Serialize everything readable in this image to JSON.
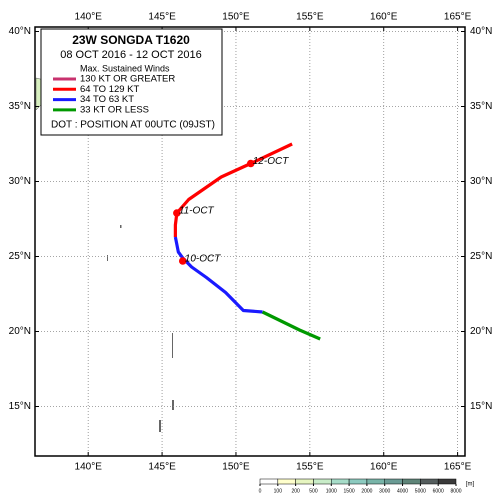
{
  "chart_data": {
    "type": "map",
    "title": "23W  SONGDA  T1620",
    "subtitle": "08 OCT 2016 - 12 OCT 2016",
    "legend_title": "Max. Sustained Winds",
    "note": "DOT : POSITION AT 00UTC (09JST)",
    "xlim": [
      136.4,
      165.5
    ],
    "ylim": [
      11.7,
      40.3
    ],
    "xticks": [
      {
        "value": 140,
        "label": "140°E"
      },
      {
        "value": 145,
        "label": "145°E"
      },
      {
        "value": 150,
        "label": "150°E"
      },
      {
        "value": 155,
        "label": "155°E"
      },
      {
        "value": 160,
        "label": "160°E"
      },
      {
        "value": 165,
        "label": "165°E"
      }
    ],
    "yticks": [
      {
        "value": 15,
        "label": "15°N"
      },
      {
        "value": 20,
        "label": "20°N"
      },
      {
        "value": 25,
        "label": "25°N"
      },
      {
        "value": 30,
        "label": "30°N"
      },
      {
        "value": 35,
        "label": "35°N"
      },
      {
        "value": 40,
        "label": "40°N"
      }
    ],
    "grid": true,
    "series": [
      {
        "name": "130 KT OR GREATER",
        "color": "#c8326e",
        "x": [],
        "values": []
      },
      {
        "name": "64 TO 129 KT",
        "color": "#ff0000",
        "x": [
          145.9,
          145.9,
          146.0,
          146.8,
          149.0,
          151.0,
          153.8
        ],
        "values": [
          26.3,
          27.1,
          27.9,
          28.8,
          30.3,
          31.2,
          32.5
        ]
      },
      {
        "name": "34 TO 63 KT",
        "color": "#1a1aff",
        "x": [
          151.8,
          150.5,
          149.3,
          148.0,
          147.0,
          146.4,
          146.1,
          145.9
        ],
        "values": [
          21.3,
          21.4,
          22.6,
          23.6,
          24.3,
          24.9,
          25.3,
          26.3
        ]
      },
      {
        "name": "33 KT OR LESS",
        "color": "#009900",
        "x": [
          155.7,
          154.3,
          151.8
        ],
        "values": [
          19.5,
          20.1,
          21.3
        ]
      }
    ],
    "positions": {
      "color": "#ff0000",
      "x": [
        146.4,
        146.0,
        151.0
      ],
      "values": [
        24.7,
        27.9,
        31.2
      ],
      "labels": [
        "10-OCT",
        "11-OCT",
        "12-OCT"
      ]
    },
    "colorbar": {
      "ticks": [
        0,
        100,
        200,
        500,
        1000,
        1500,
        2000,
        3000,
        4000,
        5000,
        6000,
        8000
      ],
      "unit": "[m]",
      "colors": [
        "#ffffff",
        "#ffffcc",
        "#e6f5c0",
        "#c8ecc8",
        "#a6dcc8",
        "#8ccabf",
        "#78b4a8",
        "#6a9b94",
        "#5e8478",
        "#555e5e",
        "#3a3a3a"
      ]
    }
  }
}
